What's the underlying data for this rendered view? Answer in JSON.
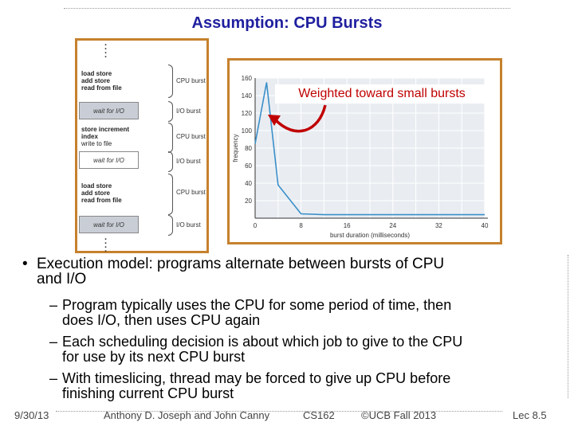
{
  "slide": {
    "title": "Assumption: CPU Bursts",
    "annotation": "Weighted toward small bursts"
  },
  "diagram": {
    "blocks": [
      {
        "lines": [
          "load store",
          "add store",
          "read from file"
        ],
        "label": "CPU burst"
      },
      {
        "wait": "wait for I/O",
        "label": "I/O burst"
      },
      {
        "lines": [
          "store increment",
          "index",
          "write to file"
        ],
        "label": "CPU burst"
      },
      {
        "wait": "wait for I/O",
        "label": "I/O burst"
      },
      {
        "lines": [
          "load store",
          "add store",
          "read from file"
        ],
        "label": "CPU burst"
      },
      {
        "wait": "wait for I/O",
        "label": "I/O burst"
      }
    ]
  },
  "chart_data": {
    "type": "line",
    "xlabel": "burst duration (milliseconds)",
    "ylabel": "frequency",
    "x_ticks": [
      "0",
      "8",
      "16",
      "24",
      "32",
      "40"
    ],
    "y_ticks": [
      "20",
      "40",
      "60",
      "80",
      "100",
      "120",
      "140",
      "160"
    ],
    "xlim": [
      0,
      40
    ],
    "ylim": [
      0,
      160
    ],
    "grid": true,
    "series": [
      {
        "x": [
          0,
          2,
          4,
          8,
          12,
          16,
          20,
          24,
          28,
          32,
          36,
          40
        ],
        "y": [
          85,
          155,
          38,
          5,
          4,
          4,
          4,
          4,
          4,
          4,
          4,
          4
        ],
        "color": "#3a8fc9"
      }
    ]
  },
  "bullets": {
    "main": [
      "Execution model: programs alternate between bursts of CPU",
      "and I/O"
    ],
    "subs": [
      [
        "Program typically uses the CPU for some period of time, then",
        "does I/O, then uses CPU again"
      ],
      [
        "Each scheduling decision is about which job to give to the CPU",
        "for use by its next CPU burst"
      ],
      [
        "With timeslicing, thread may be forced to give up CPU before",
        "finishing current CPU burst"
      ]
    ],
    "dash": "–",
    "bullet": "•"
  },
  "footer": {
    "date": "9/30/13",
    "authors": "Anthony D. Joseph and John Canny",
    "course": "CS162",
    "copyright": "©UCB Fall 2013",
    "lecture": "Lec 8.5"
  },
  "colors": {
    "title": "#1f1f9f",
    "frame": "#c6812d",
    "annotation": "#c00000",
    "series": "#3a8fc9"
  }
}
